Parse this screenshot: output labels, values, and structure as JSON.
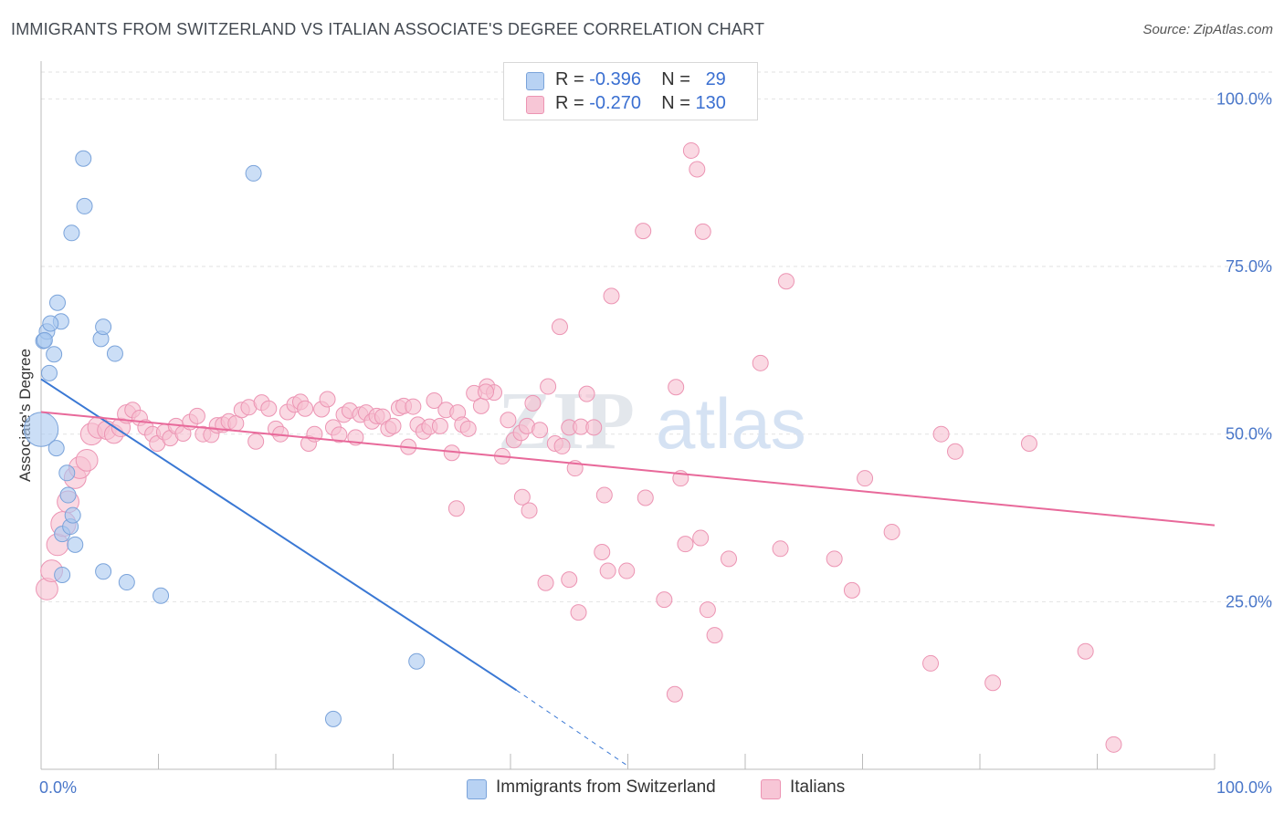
{
  "title": "IMMIGRANTS FROM SWITZERLAND VS ITALIAN ASSOCIATE'S DEGREE CORRELATION CHART",
  "source": "Source: ZipAtlas.com",
  "watermark": {
    "zip": "ZIP",
    "atlas": "atlas"
  },
  "legend": {
    "rows": [
      {
        "r_label": "R =",
        "r_value": "-0.396",
        "n_label": "N =",
        "n_value": "29"
      },
      {
        "r_label": "R =",
        "r_value": "-0.270",
        "n_label": "N =",
        "n_value": "130"
      }
    ]
  },
  "chart_data": {
    "type": "scatter",
    "title": "IMMIGRANTS FROM SWITZERLAND VS ITALIAN ASSOCIATE'S DEGREE CORRELATION CHART",
    "xlabel": "",
    "ylabel": "Associate's Degree",
    "xlim": [
      0,
      100
    ],
    "ylim": [
      0,
      104
    ],
    "x_tick_labels": [
      "0.0%",
      "100.0%"
    ],
    "y_tick_labels": [
      "100.0%",
      "75.0%",
      "50.0%",
      "25.0%"
    ],
    "y_tick_values": [
      100,
      75,
      50,
      25
    ],
    "grid": "horizontal dashed",
    "legend_position": "top-center",
    "series": [
      {
        "name": "Immigrants from Switzerland",
        "color": "#a9c8f0",
        "edge_color": "#7aa3da",
        "line_color": "#3a78d4",
        "points": [
          [
            0.0,
            50.7,
            2.2
          ],
          [
            0.2,
            63.9,
            1.0
          ],
          [
            0.5,
            65.3,
            1.0
          ],
          [
            0.7,
            59.1,
            1.0
          ],
          [
            1.1,
            61.9,
            1.0
          ],
          [
            1.3,
            47.9,
            1.0
          ],
          [
            1.4,
            69.6,
            1.0
          ],
          [
            1.7,
            66.8,
            1.0
          ],
          [
            1.8,
            35.1,
            1.0
          ],
          [
            1.8,
            29.0,
            1.0
          ],
          [
            2.2,
            44.2,
            1.0
          ],
          [
            2.3,
            40.9,
            1.0
          ],
          [
            2.5,
            36.2,
            1.0
          ],
          [
            2.6,
            80.0,
            1.0
          ],
          [
            2.7,
            37.9,
            1.0
          ],
          [
            2.9,
            33.5,
            1.0
          ],
          [
            3.6,
            91.1,
            1.0
          ],
          [
            3.7,
            84.0,
            1.0
          ],
          [
            5.1,
            64.2,
            1.0
          ],
          [
            5.3,
            66.0,
            1.0
          ],
          [
            5.3,
            29.5,
            1.0
          ],
          [
            6.3,
            62.0,
            1.0
          ],
          [
            7.3,
            27.9,
            1.0
          ],
          [
            10.2,
            25.9,
            1.0
          ],
          [
            18.1,
            88.9,
            1.0
          ],
          [
            0.3,
            64.0,
            1.0
          ],
          [
            0.8,
            66.5,
            1.0
          ],
          [
            32.0,
            16.1,
            1.0
          ],
          [
            24.9,
            7.5,
            1.0
          ]
        ],
        "trend": {
          "x0": 0,
          "y0": 58.2,
          "x1": 40.5,
          "y1": 11.8,
          "dash_to_x": 50,
          "dash_to_y": 0.5
        }
      },
      {
        "name": "Italians",
        "color": "#f6bfd1",
        "edge_color": "#ec94b3",
        "line_color": "#e8699a",
        "points": [
          [
            0.5,
            26.9,
            1.4
          ],
          [
            0.9,
            29.6,
            1.4
          ],
          [
            1.4,
            33.5,
            1.4
          ],
          [
            1.9,
            36.6,
            1.6
          ],
          [
            2.3,
            39.9,
            1.4
          ],
          [
            2.9,
            43.5,
            1.4
          ],
          [
            3.3,
            45.0,
            1.4
          ],
          [
            3.9,
            46.1,
            1.4
          ],
          [
            4.3,
            50.0,
            1.4
          ],
          [
            4.9,
            51.0,
            1.4
          ],
          [
            5.6,
            50.6,
            1.2
          ],
          [
            6.2,
            50.0,
            1.2
          ],
          [
            6.8,
            51.0,
            1.2
          ],
          [
            7.3,
            53.0,
            1.2
          ],
          [
            7.8,
            53.6,
            1.0
          ],
          [
            8.4,
            52.4,
            1.0
          ],
          [
            8.9,
            51.0,
            1.0
          ],
          [
            9.5,
            50.0,
            1.0
          ],
          [
            9.9,
            48.6,
            1.0
          ],
          [
            10.5,
            50.3,
            1.0
          ],
          [
            11.0,
            49.4,
            1.0
          ],
          [
            11.5,
            51.2,
            1.0
          ],
          [
            12.1,
            50.1,
            1.0
          ],
          [
            12.7,
            51.8,
            1.0
          ],
          [
            13.3,
            52.7,
            1.0
          ],
          [
            13.8,
            50.0,
            1.0
          ],
          [
            14.5,
            49.9,
            1.0
          ],
          [
            15.0,
            51.3,
            1.0
          ],
          [
            15.5,
            51.4,
            1.0
          ],
          [
            16.0,
            51.9,
            1.0
          ],
          [
            16.6,
            51.6,
            1.0
          ],
          [
            17.1,
            53.6,
            1.0
          ],
          [
            17.7,
            54.0,
            1.0
          ],
          [
            18.3,
            48.9,
            1.0
          ],
          [
            18.8,
            54.7,
            1.0
          ],
          [
            19.4,
            53.8,
            1.0
          ],
          [
            20.0,
            50.8,
            1.0
          ],
          [
            20.4,
            50.0,
            1.0
          ],
          [
            21.0,
            53.3,
            1.0
          ],
          [
            21.6,
            54.4,
            1.0
          ],
          [
            22.1,
            54.8,
            1.0
          ],
          [
            22.5,
            53.8,
            1.0
          ],
          [
            22.8,
            48.6,
            1.0
          ],
          [
            23.3,
            50.0,
            1.0
          ],
          [
            23.9,
            53.7,
            1.0
          ],
          [
            24.4,
            55.2,
            1.0
          ],
          [
            24.9,
            51.0,
            1.0
          ],
          [
            25.4,
            49.9,
            1.0
          ],
          [
            25.8,
            52.9,
            1.0
          ],
          [
            26.3,
            53.5,
            1.0
          ],
          [
            26.8,
            49.5,
            1.0
          ],
          [
            27.2,
            52.9,
            1.0
          ],
          [
            27.7,
            53.2,
            1.0
          ],
          [
            28.2,
            51.9,
            1.0
          ],
          [
            28.6,
            52.7,
            1.0
          ],
          [
            29.1,
            52.6,
            1.0
          ],
          [
            29.6,
            50.8,
            1.0
          ],
          [
            30.0,
            51.2,
            1.0
          ],
          [
            30.5,
            53.9,
            1.0
          ],
          [
            30.9,
            54.2,
            1.0
          ],
          [
            31.3,
            48.1,
            1.0
          ],
          [
            31.7,
            54.1,
            1.0
          ],
          [
            32.1,
            51.4,
            1.0
          ],
          [
            32.6,
            50.4,
            1.0
          ],
          [
            33.1,
            51.1,
            1.0
          ],
          [
            33.5,
            55.0,
            1.0
          ],
          [
            34.0,
            51.2,
            1.0
          ],
          [
            34.5,
            53.6,
            1.0
          ],
          [
            35.0,
            47.2,
            1.0
          ],
          [
            35.5,
            53.2,
            1.0
          ],
          [
            35.9,
            51.4,
            1.0
          ],
          [
            36.4,
            50.8,
            1.0
          ],
          [
            36.9,
            56.1,
            1.0
          ],
          [
            37.5,
            54.2,
            1.0
          ],
          [
            38.0,
            57.1,
            1.0
          ],
          [
            38.6,
            56.2,
            1.0
          ],
          [
            39.3,
            46.7,
            1.0
          ],
          [
            39.8,
            52.1,
            1.0
          ],
          [
            40.3,
            49.1,
            1.0
          ],
          [
            40.9,
            50.2,
            1.0
          ],
          [
            41.4,
            51.2,
            1.0
          ],
          [
            41.9,
            54.6,
            1.0
          ],
          [
            42.5,
            50.6,
            1.0
          ],
          [
            43.2,
            57.1,
            1.0
          ],
          [
            43.8,
            48.6,
            1.0
          ],
          [
            44.4,
            48.2,
            1.0
          ],
          [
            45.0,
            51.0,
            1.0
          ],
          [
            45.5,
            44.9,
            1.0
          ],
          [
            46.0,
            51.1,
            1.0
          ],
          [
            46.5,
            56.0,
            1.0
          ],
          [
            47.1,
            51.0,
            1.0
          ],
          [
            37.9,
            56.3,
            1.0
          ],
          [
            35.4,
            38.9,
            1.0
          ],
          [
            41.0,
            40.6,
            1.0
          ],
          [
            41.6,
            38.6,
            1.0
          ],
          [
            43.0,
            27.8,
            1.0
          ],
          [
            45.0,
            28.3,
            1.0
          ],
          [
            45.8,
            23.4,
            1.0
          ],
          [
            47.8,
            32.4,
            1.0
          ],
          [
            48.3,
            29.6,
            1.0
          ],
          [
            49.9,
            29.6,
            1.0
          ],
          [
            51.5,
            40.5,
            1.0
          ],
          [
            53.1,
            25.3,
            1.0
          ],
          [
            48.0,
            40.9,
            1.0
          ],
          [
            48.6,
            70.6,
            1.0
          ],
          [
            44.2,
            66.0,
            1.0
          ],
          [
            51.3,
            80.3,
            1.0
          ],
          [
            54.1,
            57.0,
            1.0
          ],
          [
            54.9,
            33.6,
            1.0
          ],
          [
            55.4,
            92.3,
            1.0
          ],
          [
            55.9,
            89.5,
            1.0
          ],
          [
            56.2,
            34.5,
            1.0
          ],
          [
            56.4,
            80.2,
            1.0
          ],
          [
            56.8,
            23.8,
            1.0
          ],
          [
            57.4,
            20.0,
            1.0
          ],
          [
            58.6,
            31.4,
            1.0
          ],
          [
            61.3,
            60.6,
            1.0
          ],
          [
            63.0,
            32.9,
            1.0
          ],
          [
            63.5,
            72.8,
            1.0
          ],
          [
            67.6,
            31.4,
            1.0
          ],
          [
            69.1,
            26.7,
            1.0
          ],
          [
            70.2,
            43.4,
            1.0
          ],
          [
            72.5,
            35.4,
            1.0
          ],
          [
            75.8,
            15.8,
            1.0
          ],
          [
            76.7,
            50.0,
            1.0
          ],
          [
            77.9,
            47.4,
            1.0
          ],
          [
            81.1,
            12.9,
            1.0
          ],
          [
            84.2,
            48.6,
            1.0
          ],
          [
            89.0,
            17.6,
            1.0
          ],
          [
            91.4,
            3.7,
            1.0
          ],
          [
            54.5,
            43.4,
            1.0
          ],
          [
            54.0,
            11.2,
            1.0
          ]
        ],
        "trend": {
          "x0": 0,
          "y0": 53.3,
          "x1": 100,
          "y1": 36.4
        }
      }
    ]
  },
  "bottom_legend": [
    {
      "label": "Immigrants from Switzerland"
    },
    {
      "label": "Italians"
    }
  ]
}
